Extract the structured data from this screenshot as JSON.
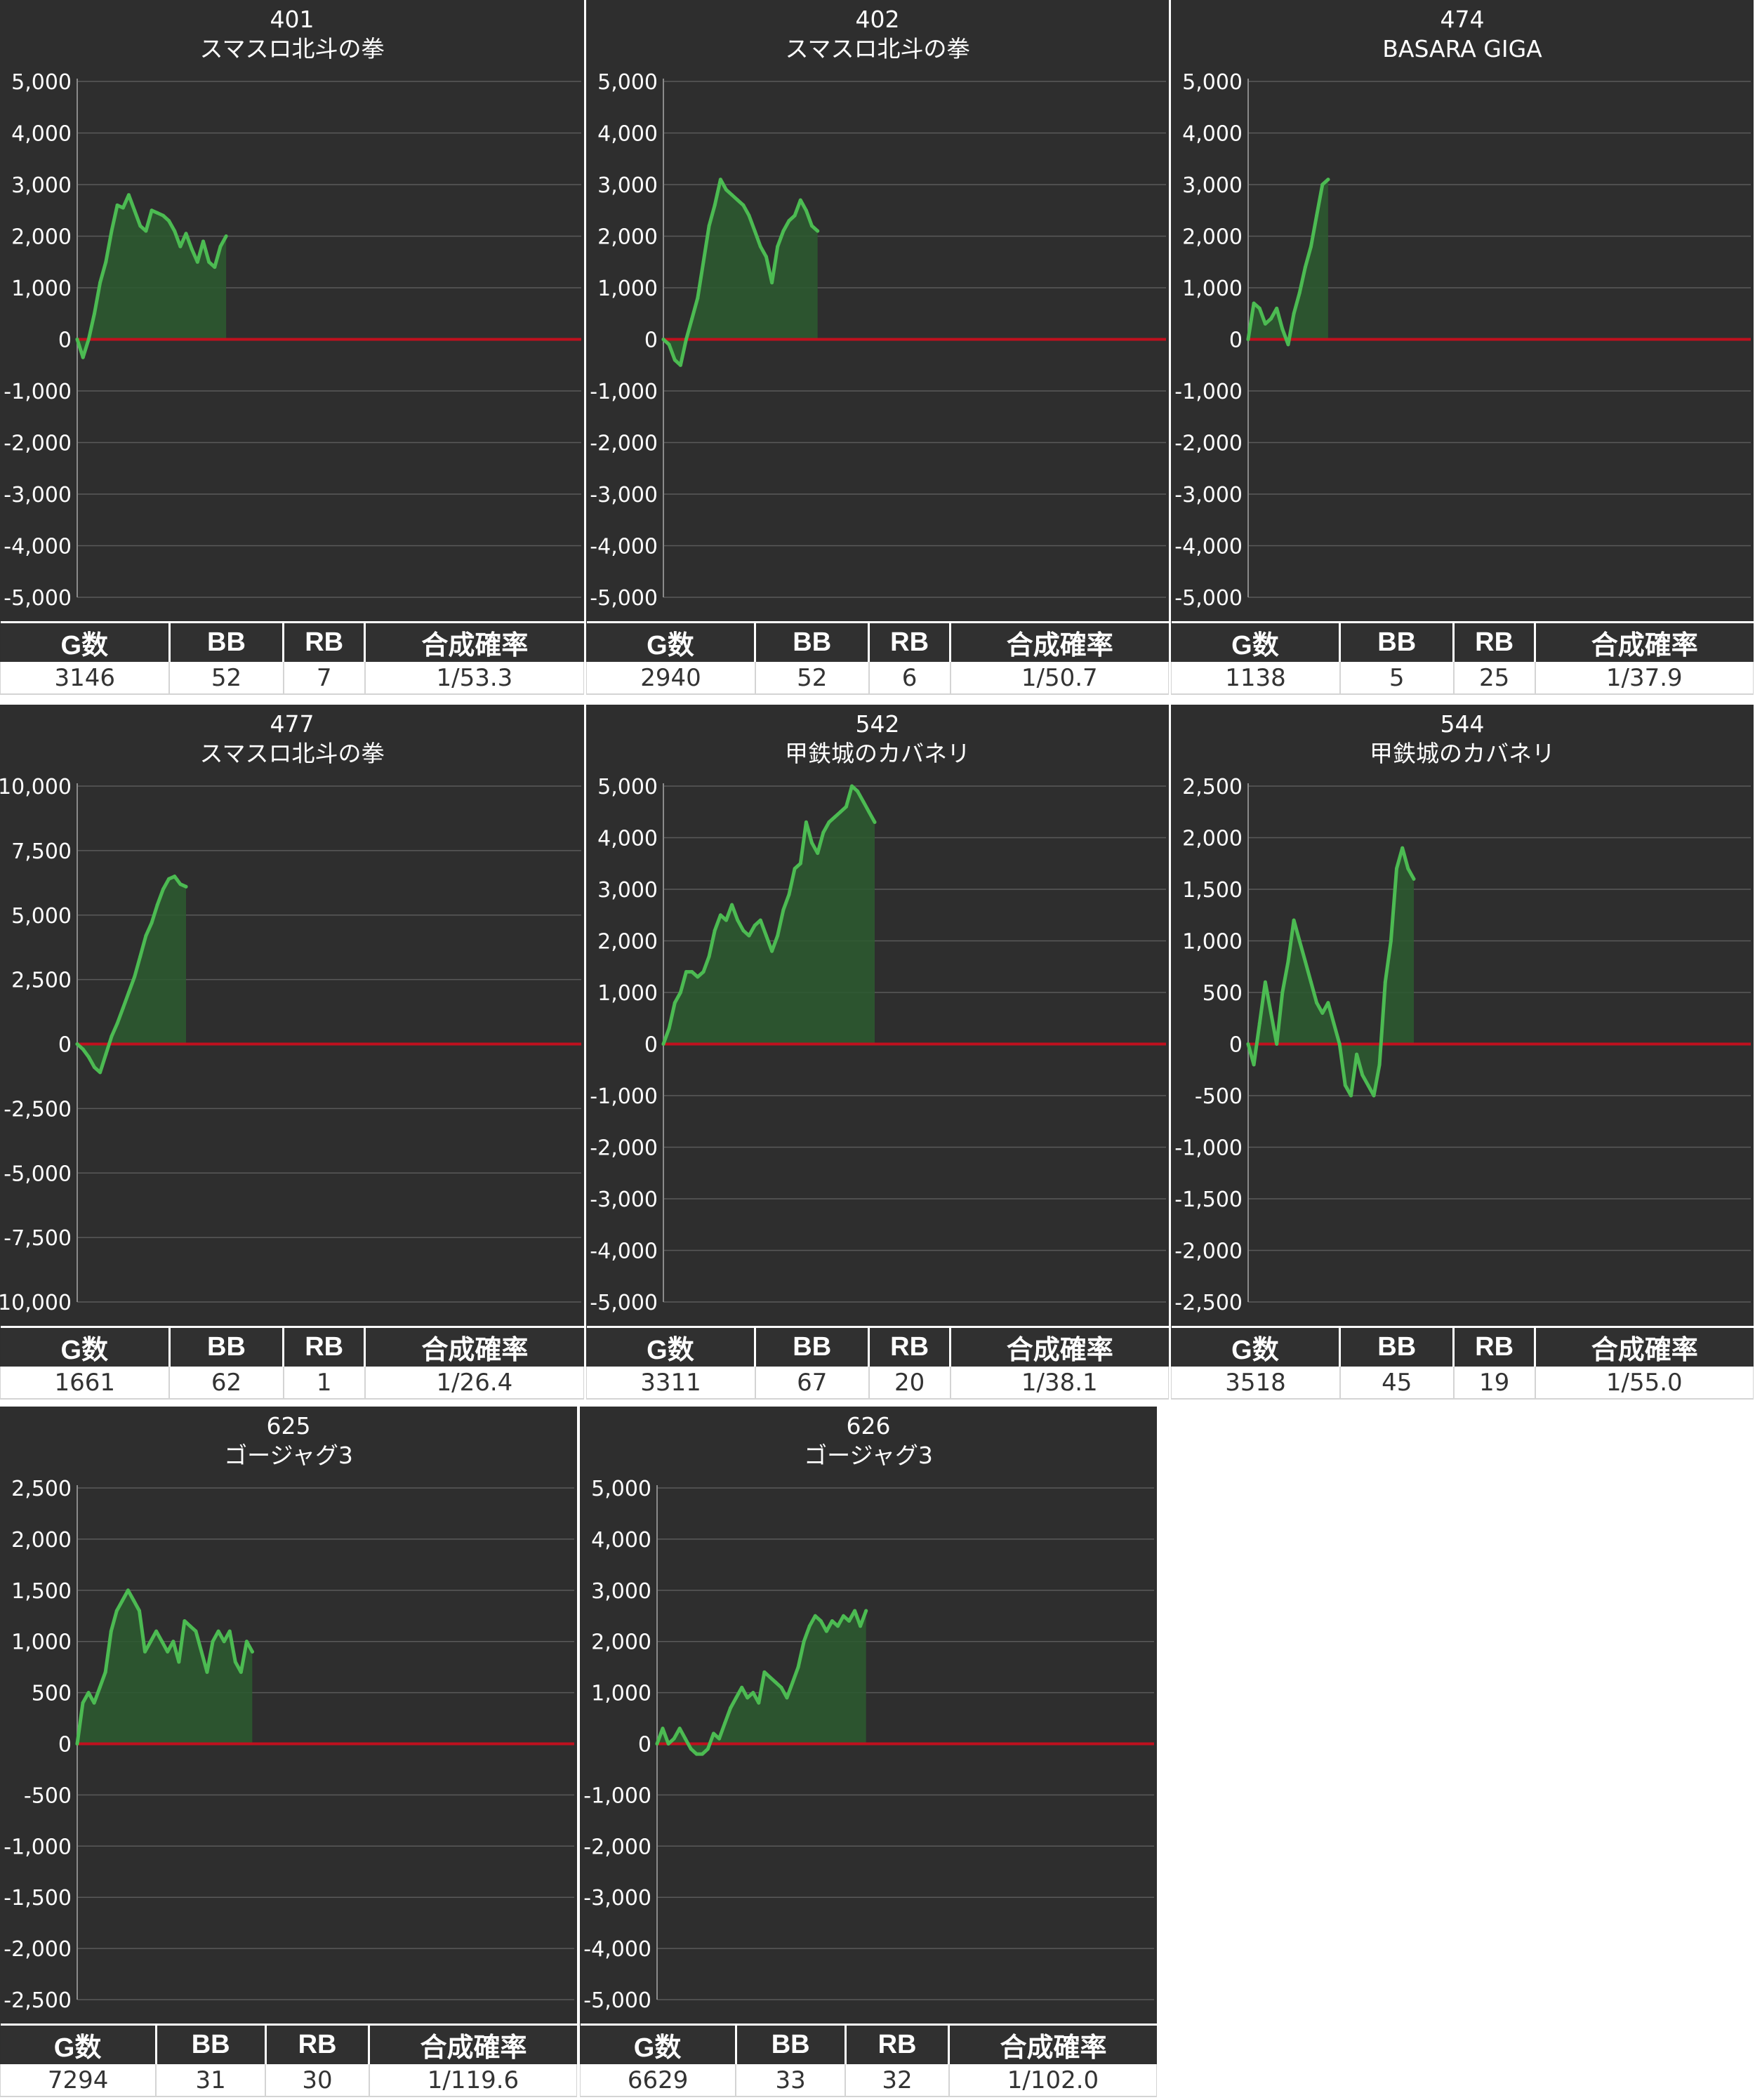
{
  "stats_headers": [
    "G数",
    "BB",
    "RB",
    "合成確率"
  ],
  "colors": {
    "panel_bg": "#2e2e2e",
    "line": "#4cbb52",
    "fill": "#2c5a2f",
    "zero_line": "#c0101e",
    "grid": "#5a5a5a",
    "axis_text": "#ffffff"
  },
  "charts": [
    {
      "number": "401",
      "name": "スマスロ北斗の拳",
      "stats": {
        "games": "3146",
        "bb": "52",
        "rb": "7",
        "prob": "1/53.3"
      },
      "chart_data": {
        "type": "area",
        "ylim": [
          -5000,
          5000
        ],
        "step": 1000,
        "y_ticks": [
          "5,000",
          "4,000",
          "3,000",
          "2,000",
          "1,000",
          "0",
          "-1,000",
          "-2,000",
          "-3,000",
          "-4,000",
          "-5,000"
        ],
        "values": [
          0,
          -350,
          0,
          500,
          1100,
          1500,
          2100,
          2600,
          2550,
          2800,
          2500,
          2200,
          2100,
          2500,
          2450,
          2400,
          2300,
          2100,
          1800,
          2050,
          1750,
          1500,
          1900,
          1500,
          1400,
          1800,
          2000
        ]
      }
    },
    {
      "number": "402",
      "name": "スマスロ北斗の拳",
      "stats": {
        "games": "2940",
        "bb": "52",
        "rb": "6",
        "prob": "1/50.7"
      },
      "chart_data": {
        "type": "area",
        "ylim": [
          -5000,
          5000
        ],
        "step": 1000,
        "y_ticks": [
          "5,000",
          "4,000",
          "3,000",
          "2,000",
          "1,000",
          "0",
          "-1,000",
          "-2,000",
          "-3,000",
          "-4,000",
          "-5,000"
        ],
        "values": [
          0,
          -100,
          -400,
          -500,
          0,
          400,
          800,
          1500,
          2200,
          2600,
          3100,
          2900,
          2800,
          2700,
          2600,
          2400,
          2100,
          1800,
          1600,
          1100,
          1800,
          2100,
          2300,
          2400,
          2700,
          2500,
          2200,
          2100
        ]
      }
    },
    {
      "number": "474",
      "name": "BASARA GIGA",
      "stats": {
        "games": "1138",
        "bb": "5",
        "rb": "25",
        "prob": "1/37.9"
      },
      "chart_data": {
        "type": "area",
        "ylim": [
          -5000,
          5000
        ],
        "step": 1000,
        "y_ticks": [
          "5,000",
          "4,000",
          "3,000",
          "2,000",
          "1,000",
          "0",
          "-1,000",
          "-2,000",
          "-3,000",
          "-4,000",
          "-5,000"
        ],
        "values": [
          0,
          700,
          600,
          300,
          400,
          600,
          200,
          -100,
          500,
          900,
          1400,
          1800,
          2400,
          3000,
          3100
        ]
      }
    },
    {
      "number": "477",
      "name": "スマスロ北斗の拳",
      "stats": {
        "games": "1661",
        "bb": "62",
        "rb": "1",
        "prob": "1/26.4"
      },
      "chart_data": {
        "type": "area",
        "ylim": [
          -10000,
          10000
        ],
        "step": 2500,
        "y_ticks": [
          "10,000",
          "7,500",
          "5,000",
          "2,500",
          "0",
          "-2,500",
          "-5,000",
          "-7,500",
          "-10,000"
        ],
        "values": [
          0,
          -200,
          -500,
          -900,
          -1100,
          -400,
          300,
          800,
          1400,
          2000,
          2600,
          3400,
          4200,
          4700,
          5400,
          6000,
          6400,
          6500,
          6200,
          6100
        ]
      }
    },
    {
      "number": "542",
      "name": "甲鉄城のカバネリ",
      "stats": {
        "games": "3311",
        "bb": "67",
        "rb": "20",
        "prob": "1/38.1"
      },
      "chart_data": {
        "type": "area",
        "ylim": [
          -5000,
          5000
        ],
        "step": 1000,
        "y_ticks": [
          "5,000",
          "4,000",
          "3,000",
          "2,000",
          "1,000",
          "0",
          "-1,000",
          "-2,000",
          "-3,000",
          "-4,000",
          "-5,000"
        ],
        "values": [
          0,
          300,
          800,
          1000,
          1400,
          1400,
          1300,
          1400,
          1700,
          2200,
          2500,
          2400,
          2700,
          2400,
          2200,
          2100,
          2300,
          2400,
          2100,
          1800,
          2100,
          2600,
          2900,
          3400,
          3500,
          4300,
          3900,
          3700,
          4100,
          4300,
          4400,
          4500,
          4600,
          5000,
          4900,
          4700,
          4500,
          4300
        ]
      }
    },
    {
      "number": "544",
      "name": "甲鉄城のカバネリ",
      "stats": {
        "games": "3518",
        "bb": "45",
        "rb": "19",
        "prob": "1/55.0"
      },
      "chart_data": {
        "type": "area",
        "ylim": [
          -2500,
          2500
        ],
        "step": 500,
        "y_ticks": [
          "2,500",
          "2,000",
          "1,500",
          "1,000",
          "500",
          "0",
          "-500",
          "-1,000",
          "-1,500",
          "-2,000",
          "-2,500"
        ],
        "values": [
          0,
          -200,
          200,
          600,
          300,
          0,
          500,
          800,
          1200,
          1000,
          800,
          600,
          400,
          300,
          400,
          200,
          0,
          -400,
          -500,
          -100,
          -300,
          -400,
          -500,
          -200,
          600,
          1000,
          1700,
          1900,
          1700,
          1600
        ]
      }
    },
    {
      "number": "625",
      "name": "ゴージャグ3",
      "stats": {
        "games": "7294",
        "bb": "31",
        "rb": "30",
        "prob": "1/119.6"
      },
      "chart_data": {
        "type": "area",
        "ylim": [
          -2500,
          2500
        ],
        "step": 500,
        "y_ticks": [
          "2,500",
          "2,000",
          "1,500",
          "1,000",
          "500",
          "0",
          "-500",
          "-1,000",
          "-1,500",
          "-2,000",
          "-2,500"
        ],
        "values": [
          0,
          400,
          500,
          400,
          550,
          700,
          1100,
          1300,
          1400,
          1500,
          1400,
          1300,
          900,
          1000,
          1100,
          1000,
          900,
          1000,
          800,
          1200,
          1150,
          1100,
          900,
          700,
          1000,
          1100,
          1000,
          1100,
          800,
          700,
          1000,
          900
        ]
      }
    },
    {
      "number": "626",
      "name": "ゴージャグ3",
      "stats": {
        "games": "6629",
        "bb": "33",
        "rb": "32",
        "prob": "1/102.0"
      },
      "chart_data": {
        "type": "area",
        "ylim": [
          -5000,
          5000
        ],
        "step": 1000,
        "y_ticks": [
          "5,000",
          "4,000",
          "3,000",
          "2,000",
          "1,000",
          "0",
          "-1,000",
          "-2,000",
          "-3,000",
          "-4,000",
          "-5,000"
        ],
        "values": [
          0,
          300,
          0,
          100,
          300,
          100,
          -100,
          -200,
          -200,
          -100,
          200,
          100,
          400,
          700,
          900,
          1100,
          900,
          1000,
          800,
          1400,
          1300,
          1200,
          1100,
          900,
          1200,
          1500,
          2000,
          2300,
          2500,
          2400,
          2200,
          2400,
          2300,
          2500,
          2400,
          2600,
          2300,
          2600
        ]
      }
    }
  ]
}
